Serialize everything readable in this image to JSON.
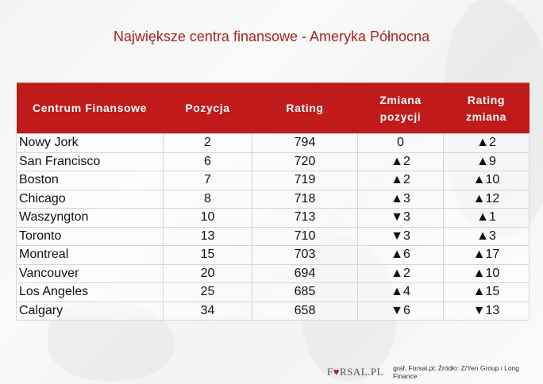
{
  "title": "Największe centra finansowe - Ameryka Północna",
  "colors": {
    "header_bg": "#c01a1a",
    "title": "#a8231d",
    "up": "#2e9e48",
    "down": "#b01c1c"
  },
  "table": {
    "headers": [
      "Centrum Finansowe",
      "Pozycja",
      "Rating",
      "Zmiana\npozycji",
      "Rating\nzmiana"
    ],
    "header_lines": [
      [
        "Centrum Finansowe"
      ],
      [
        "Pozycja"
      ],
      [
        "Rating"
      ],
      [
        "Zmiana",
        "pozycji"
      ],
      [
        "Rating",
        "zmiana"
      ]
    ],
    "rows": [
      {
        "name": "Nowy Jork",
        "pozycja": "2",
        "rating": "794",
        "zmiana_pozycji": {
          "dir": "flat",
          "icon": "",
          "value": "0"
        },
        "rating_zmiana": {
          "dir": "up",
          "icon": "▲",
          "value": "2"
        }
      },
      {
        "name": "San Francisco",
        "pozycja": "6",
        "rating": "720",
        "zmiana_pozycji": {
          "dir": "up",
          "icon": "▲",
          "value": "2"
        },
        "rating_zmiana": {
          "dir": "up",
          "icon": "▲",
          "value": "9"
        }
      },
      {
        "name": "Boston",
        "pozycja": "7",
        "rating": "719",
        "zmiana_pozycji": {
          "dir": "up",
          "icon": "▲",
          "value": "2"
        },
        "rating_zmiana": {
          "dir": "up",
          "icon": "▲",
          "value": "10"
        }
      },
      {
        "name": "Chicago",
        "pozycja": "8",
        "rating": "718",
        "zmiana_pozycji": {
          "dir": "up",
          "icon": "▲",
          "value": "3"
        },
        "rating_zmiana": {
          "dir": "up",
          "icon": "▲",
          "value": "12"
        }
      },
      {
        "name": "Waszyngton",
        "pozycja": "10",
        "rating": "713",
        "zmiana_pozycji": {
          "dir": "down",
          "icon": "▼",
          "value": "3"
        },
        "rating_zmiana": {
          "dir": "up",
          "icon": "▲",
          "value": "1"
        }
      },
      {
        "name": "Toronto",
        "pozycja": "13",
        "rating": "710",
        "zmiana_pozycji": {
          "dir": "down",
          "icon": "▼",
          "value": "3"
        },
        "rating_zmiana": {
          "dir": "up",
          "icon": "▲",
          "value": "3"
        }
      },
      {
        "name": "Montreal",
        "pozycja": "15",
        "rating": "703",
        "zmiana_pozycji": {
          "dir": "up",
          "icon": "▲",
          "value": "6"
        },
        "rating_zmiana": {
          "dir": "up",
          "icon": "▲",
          "value": "17"
        }
      },
      {
        "name": "Vancouver",
        "pozycja": "20",
        "rating": "694",
        "zmiana_pozycji": {
          "dir": "up",
          "icon": "▲",
          "value": "2"
        },
        "rating_zmiana": {
          "dir": "up",
          "icon": "▲",
          "value": "10"
        }
      },
      {
        "name": "Los Angeles",
        "pozycja": "25",
        "rating": "685",
        "zmiana_pozycji": {
          "dir": "up",
          "icon": "▲",
          "value": "4"
        },
        "rating_zmiana": {
          "dir": "up",
          "icon": "▲",
          "value": "15"
        }
      },
      {
        "name": "Calgary",
        "pozycja": "34",
        "rating": "658",
        "zmiana_pozycji": {
          "dir": "down",
          "icon": "▼",
          "value": "6"
        },
        "rating_zmiana": {
          "dir": "down",
          "icon": "▼",
          "value": "13"
        }
      }
    ]
  },
  "footer": {
    "logo_left": "F",
    "logo_icon": "♥",
    "logo_right": "RSAL.PL",
    "source": "graf. Forsal.pl; Źródło: Z/Yen Group i Long Finance"
  }
}
